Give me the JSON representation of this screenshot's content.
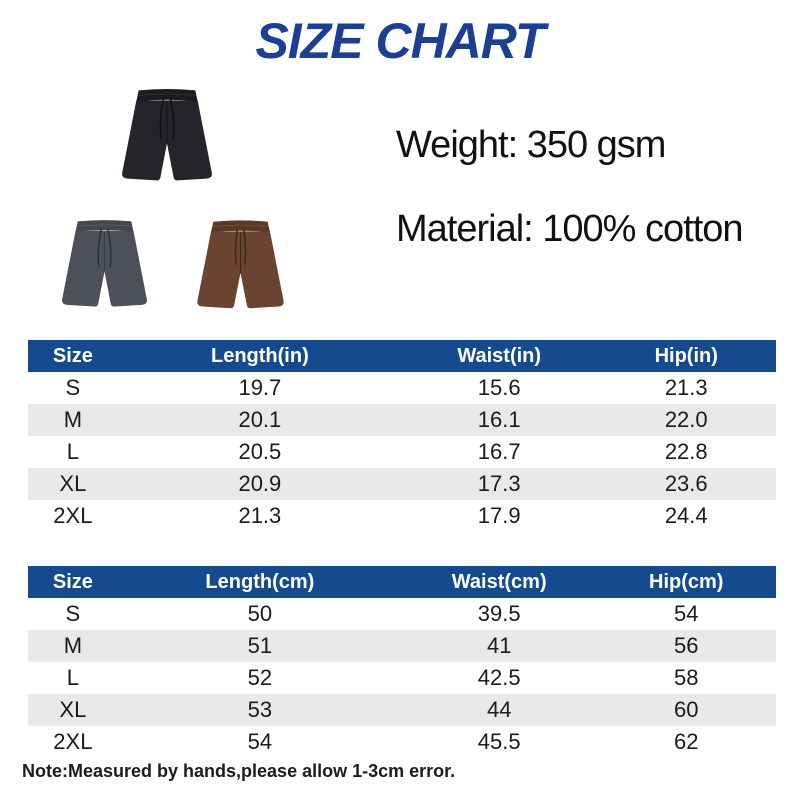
{
  "page": {
    "title": "SIZE CHART"
  },
  "specs": {
    "weight": "Weight: 350 gsm",
    "material": "Material: 100% cotton"
  },
  "products": [
    {
      "name": "black shorts",
      "body_color": "#26242a",
      "band_color": "#1d1b21",
      "string_color": "#101014",
      "stitch_color": "#3a383f"
    },
    {
      "name": "charcoal shorts",
      "body_color": "#4d5058",
      "band_color": "#45474f",
      "string_color": "#2b2d33",
      "stitch_color": "#5e616a"
    },
    {
      "name": "brown shorts",
      "body_color": "#6a4331",
      "band_color": "#5b3827",
      "string_color": "#3a2314",
      "stitch_color": "#7a5340"
    }
  ],
  "tables": [
    {
      "name": "size table (inches)",
      "headers": [
        "Size",
        "Length(in)",
        "Waist(in)",
        "Hip(in)"
      ],
      "rows": [
        [
          "S",
          "19.7",
          "15.6",
          "21.3"
        ],
        [
          "M",
          "20.1",
          "16.1",
          "22.0"
        ],
        [
          "L",
          "20.5",
          "16.7",
          "22.8"
        ],
        [
          "XL",
          "20.9",
          "17.3",
          "23.6"
        ],
        [
          "2XL",
          "21.3",
          "17.9",
          "24.4"
        ]
      ]
    },
    {
      "name": "size table (cm)",
      "headers": [
        "Size",
        "Length(cm)",
        "Waist(cm)",
        "Hip(cm)"
      ],
      "rows": [
        [
          "S",
          "50",
          "39.5",
          "54"
        ],
        [
          "M",
          "51",
          "41",
          "56"
        ],
        [
          "L",
          "52",
          "42.5",
          "58"
        ],
        [
          "XL",
          "53",
          "44",
          "60"
        ],
        [
          "2XL",
          "54",
          "45.5",
          "62"
        ]
      ]
    }
  ],
  "note": "Note:Measured by hands,please allow 1-3cm error.",
  "colors": {
    "title_color": "#1c3f94",
    "header_bg": "#154a8e",
    "row_alt": "#e9e9e9"
  }
}
